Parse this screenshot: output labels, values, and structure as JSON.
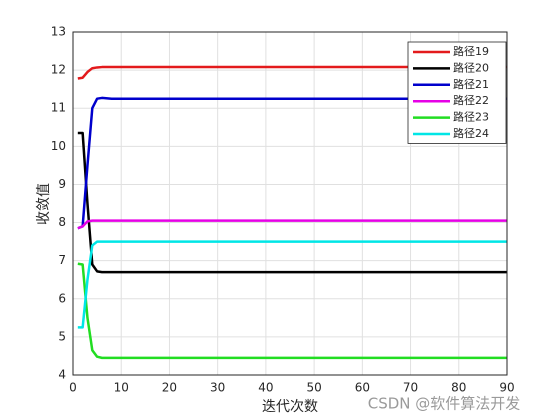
{
  "chart_data": {
    "type": "line",
    "xlabel": "迭代次数",
    "ylabel": "收敛值",
    "watermark": "CSDN @软件算法开发",
    "x": [
      1,
      2,
      3,
      4,
      5,
      6,
      8,
      10,
      20,
      30,
      40,
      50,
      60,
      70,
      80,
      90
    ],
    "series": [
      {
        "name": "路径19",
        "color": "#e31a1c",
        "values": [
          11.78,
          11.8,
          11.95,
          12.05,
          12.07,
          12.08,
          12.08,
          12.08,
          12.08,
          12.08,
          12.08,
          12.08,
          12.08,
          12.08,
          12.08,
          12.08
        ]
      },
      {
        "name": "路径20",
        "color": "#000000",
        "values": [
          10.35,
          10.35,
          8.5,
          6.9,
          6.72,
          6.7,
          6.7,
          6.7,
          6.7,
          6.7,
          6.7,
          6.7,
          6.7,
          6.7,
          6.7,
          6.7
        ]
      },
      {
        "name": "路径21",
        "color": "#0000cc",
        "values": [
          7.85,
          7.9,
          9.5,
          11.0,
          11.25,
          11.27,
          11.25,
          11.25,
          11.25,
          11.25,
          11.25,
          11.25,
          11.25,
          11.25,
          11.25,
          11.25
        ]
      },
      {
        "name": "路径22",
        "color": "#e600e6",
        "values": [
          7.85,
          7.9,
          8.03,
          8.05,
          8.05,
          8.05,
          8.05,
          8.05,
          8.05,
          8.05,
          8.05,
          8.05,
          8.05,
          8.05,
          8.05,
          8.05
        ]
      },
      {
        "name": "路径23",
        "color": "#22dd22",
        "values": [
          6.92,
          6.9,
          5.5,
          4.65,
          4.48,
          4.45,
          4.45,
          4.45,
          4.45,
          4.45,
          4.45,
          4.45,
          4.45,
          4.45,
          4.45,
          4.45
        ]
      },
      {
        "name": "路径24",
        "color": "#00e6e6",
        "values": [
          5.25,
          5.25,
          6.5,
          7.4,
          7.5,
          7.5,
          7.5,
          7.5,
          7.5,
          7.5,
          7.5,
          7.5,
          7.5,
          7.5,
          7.5,
          7.5
        ]
      }
    ],
    "xlim": [
      0,
      90
    ],
    "xticks": [
      0,
      10,
      20,
      30,
      40,
      50,
      60,
      70,
      80,
      90
    ],
    "ylim": [
      4,
      13
    ],
    "yticks": [
      4,
      5,
      6,
      7,
      8,
      9,
      10,
      11,
      12,
      13
    ],
    "grid": true,
    "legend": "top-right"
  }
}
